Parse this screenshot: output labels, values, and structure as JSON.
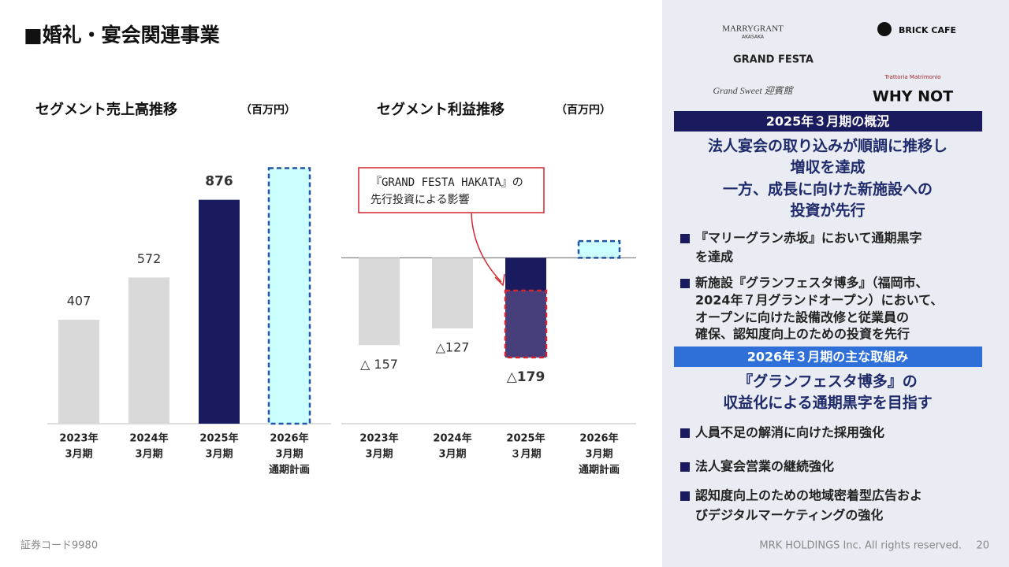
{
  "title": "■婚礼・宴会関連事業",
  "chart_data": [
    {
      "type": "bar",
      "title": "セグメント売上高推移",
      "unit": "（百万円）",
      "categories": [
        [
          "2023年",
          "3月期"
        ],
        [
          "2024年",
          "3月期"
        ],
        [
          "2025年",
          "3月期"
        ],
        [
          "2026年",
          "3月期",
          "通期計画"
        ]
      ],
      "values": [
        407,
        572,
        876,
        1000
      ],
      "value_labels": [
        "407",
        "572",
        "876",
        null
      ],
      "colors": [
        "#d9d9d9",
        "#d9d9d9",
        "#1a1a5e",
        "#ccffff"
      ],
      "dashed": [
        false,
        false,
        false,
        true
      ],
      "bold_labels": [
        false,
        false,
        true,
        false
      ],
      "outline_color": "#2255a4",
      "ylim": [
        0,
        1100
      ]
    },
    {
      "type": "bar",
      "title": "セグメント利益推移",
      "unit": "（百万円）",
      "categories": [
        [
          "2023年",
          "3月期"
        ],
        [
          "2024年",
          "3月期"
        ],
        [
          "2025年",
          "３月期"
        ],
        [
          "2026年",
          "3月期",
          "通期計画"
        ]
      ],
      "values": [
        -157,
        -127,
        -179,
        30
      ],
      "value_labels": [
        "△ 157",
        "△127",
        "△179",
        null
      ],
      "impact": [
        null,
        null,
        -120,
        null
      ],
      "impact_color": "#463f7c",
      "impact_outline": "#d4252f",
      "colors": [
        "#d9d9d9",
        "#d9d9d9",
        "#1a1a5e",
        "#ccffff"
      ],
      "dashed": [
        false,
        false,
        false,
        true
      ],
      "bold_labels": [
        false,
        false,
        true,
        false
      ],
      "outline_color": "#2255a4",
      "ylim": [
        -250,
        50
      ],
      "annotation": [
        "『GRAND FESTA HAKATA』の",
        "先行投資による影響"
      ]
    }
  ],
  "brands": [
    "MARRYGRANT",
    "AKASAKA",
    "BRICK CAFE",
    "GRAND FESTA",
    "Trattoria Matrimonio",
    "Grand Sweet 迎賓館",
    "WHY NOT"
  ],
  "outlook": {
    "heading": "2025年３月期の概況",
    "headline": [
      "法人宴会の取り込みが順調に推移し",
      "増収を達成",
      "一方、成長に向けた新施設への",
      "投資が先行"
    ],
    "bullets": [
      [
        "『マリーグラン赤坂』において通期黒字",
        "を達成"
      ],
      [
        "新施設『グランフェスタ博多』（福岡市、",
        "2024年７月グランドオープン）において、",
        "オープンに向けた設備改修と従業員の",
        "確保、認知度向上のための投資を先行"
      ]
    ]
  },
  "plan": {
    "heading": "2026年３月期の主な取組み",
    "headline": [
      "『グランフェスタ博多』の",
      "収益化による通期黒字を目指す"
    ],
    "bullets": [
      [
        "人員不足の解消に向けた採用強化"
      ],
      [
        "法人宴会営業の継続強化"
      ],
      [
        "認知度向上のための地域密着型広告およ",
        "びデジタルマーケティングの強化"
      ]
    ]
  },
  "footer": {
    "code": "証券コード9980",
    "copyright": "MRK HOLDINGS Inc. All rights reserved.",
    "page": "20"
  }
}
